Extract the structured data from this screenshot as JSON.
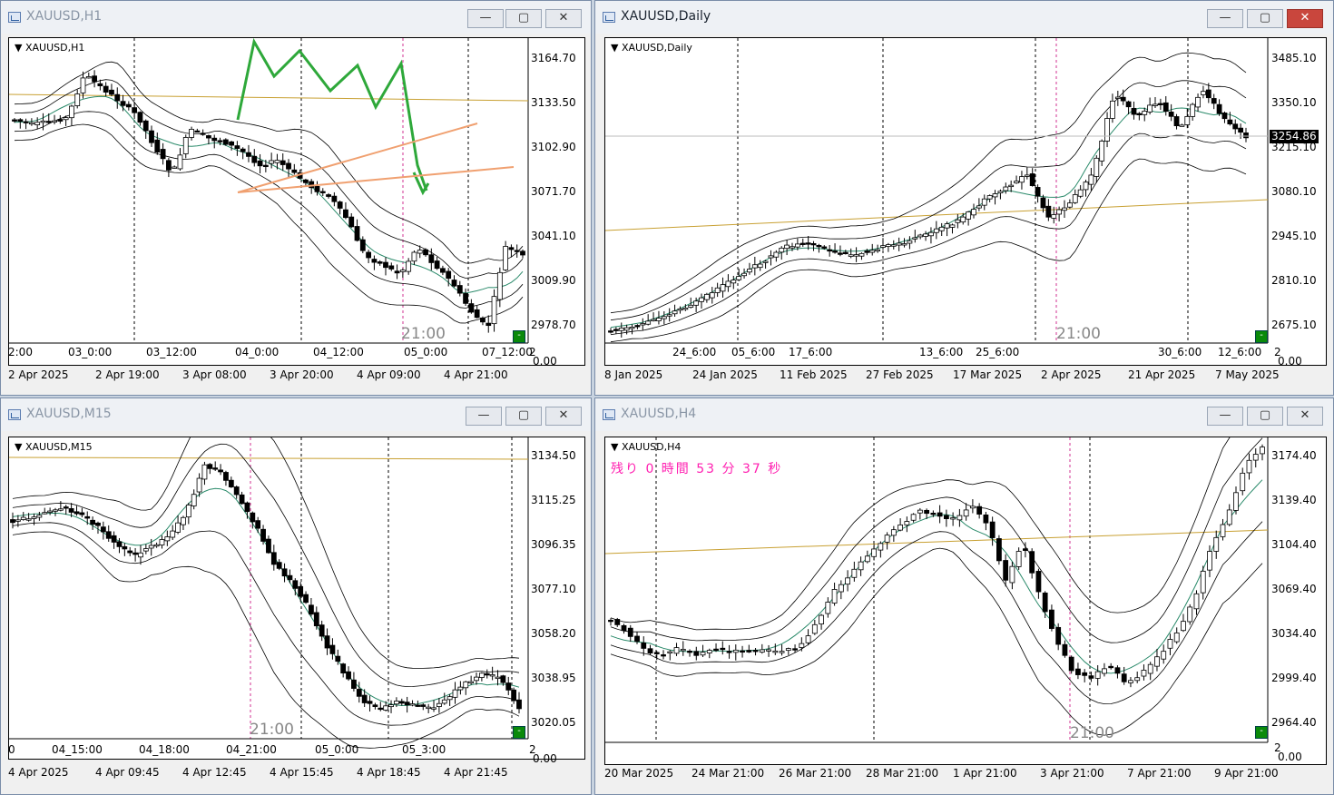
{
  "windows": {
    "h1": {
      "title": "XAUUSD,H1",
      "symbol_label": "XAUUSD,H1",
      "price_labels": [
        "3164.70",
        "3133.50",
        "3102.90",
        "3071.70",
        "3041.10",
        "3009.90",
        "2978.70"
      ],
      "time_labels": [
        "2:00",
        "03_0:00",
        "03_12:00",
        "04_0:00",
        "04_12:00",
        "05_0:00",
        "07_12:00"
      ],
      "axis_end": "2",
      "axis_sub": "0.00",
      "date_labels": [
        "2 Apr 2025",
        "2 Apr 19:00",
        "3 Apr 08:00",
        "3 Apr 20:00",
        "4 Apr 09:00",
        "4 Apr 21:00"
      ],
      "marker": "21:00",
      "green_box": "-"
    },
    "daily": {
      "title": "XAUUSD,Daily",
      "symbol_label": "XAUUSD,Daily",
      "price_labels": [
        "3485.10",
        "3350.10",
        "3215.10",
        "3080.10",
        "2945.10",
        "2810.10",
        "2675.10"
      ],
      "current_price": "3254.86",
      "time_labels": [
        "24_6:00",
        "05_6:00",
        "17_6:00",
        "13_6:00",
        "25_6:00",
        "30_6:00",
        "12_6:00"
      ],
      "axis_end": "2",
      "axis_sub": "0.00",
      "date_labels": [
        "8 Jan 2025",
        "24 Jan 2025",
        "11 Feb 2025",
        "27 Feb 2025",
        "17 Mar 2025",
        "2 Apr 2025",
        "21 Apr 2025",
        "7 May 2025"
      ],
      "marker": "21:00",
      "green_box": "-"
    },
    "m15": {
      "title": "XAUUSD,M15",
      "symbol_label": "XAUUSD,M15",
      "price_labels": [
        "3134.50",
        "3115.25",
        "3096.35",
        "3077.10",
        "3058.20",
        "3038.95",
        "3020.05"
      ],
      "time_labels": [
        "0",
        "04_15:00",
        "04_18:00",
        "04_21:00",
        "05_0:00",
        "05_3:00"
      ],
      "axis_end": "2",
      "axis_sub": "0.00",
      "date_labels": [
        "4 Apr 2025",
        "4 Apr 09:45",
        "4 Apr 12:45",
        "4 Apr 15:45",
        "4 Apr 18:45",
        "4 Apr 21:45"
      ],
      "marker": "21:00",
      "green_box": "-"
    },
    "h4": {
      "title": "XAUUSD,H4",
      "symbol_label": "XAUUSD,H4",
      "countdown": "残り 0 時間 53 分 37 秒",
      "price_labels": [
        "3174.40",
        "3139.40",
        "3104.40",
        "3069.40",
        "3034.40",
        "2999.40",
        "2964.40"
      ],
      "axis_end": "2",
      "axis_sub": "0.00",
      "date_labels": [
        "20 Mar 2025",
        "24 Mar 21:00",
        "26 Mar 21:00",
        "28 Mar 21:00",
        "1 Apr 21:00",
        "3 Apr 21:00",
        "7 Apr 21:00",
        "9 Apr 21:00"
      ],
      "marker": "21:00",
      "green_box": "-"
    }
  },
  "colors": {
    "bollinger": "#000000",
    "ma_green": "#2a8a6a",
    "horizontal_line": "#c8a032",
    "separator_pink": "#d03090",
    "annotation_green": "#2ea83a",
    "annotation_orange": "#f0a070",
    "countdown": "#ff1fb0"
  },
  "icons": {
    "minimize": "minimize-icon",
    "maximize": "maximize-icon",
    "close": "close-icon"
  }
}
